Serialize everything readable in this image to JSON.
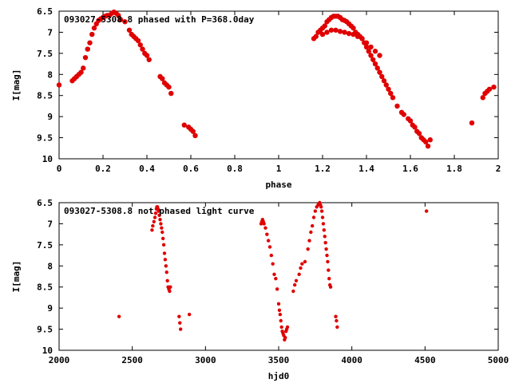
{
  "chart_data": [
    {
      "type": "scatter",
      "title": "093027-5308.8 phased with P=368.0day",
      "xlabel": "phase",
      "ylabel": "I[mag]",
      "xlim": [
        0,
        2
      ],
      "ylim": [
        10,
        6.5
      ],
      "y_inverted": true,
      "xticks": [
        "0",
        "0.2",
        "0.4",
        "0.6",
        "0.8",
        "1",
        "1.2",
        "1.4",
        "1.6",
        "1.8",
        "2"
      ],
      "yticks": [
        "6.5",
        "7",
        "7.5",
        "8",
        "8.5",
        "9",
        "9.5",
        "10"
      ],
      "marker_color": "#e00000",
      "series": [
        {
          "x": [
            0.0,
            0.06,
            0.07,
            0.08,
            0.09,
            0.1,
            0.11,
            0.12,
            0.13,
            0.14,
            0.15,
            0.16,
            0.17,
            0.18,
            0.19,
            0.2,
            0.21,
            0.22,
            0.23,
            0.24,
            0.25,
            0.26,
            0.27,
            0.28,
            0.3,
            0.32,
            0.33,
            0.34,
            0.35,
            0.36,
            0.37,
            0.38,
            0.39,
            0.4,
            0.41,
            0.46,
            0.47,
            0.48,
            0.49,
            0.5,
            0.51,
            0.57,
            0.59,
            0.6,
            0.61,
            0.62,
            1.16,
            1.17,
            1.18,
            1.19,
            1.2,
            1.21,
            1.22,
            1.23,
            1.24,
            1.25,
            1.26,
            1.27,
            1.28,
            1.29,
            1.3,
            1.31,
            1.32,
            1.33,
            1.34,
            1.35,
            1.36,
            1.37,
            1.38,
            1.39,
            1.4,
            1.41,
            1.42,
            1.43,
            1.44,
            1.45,
            1.46,
            1.47,
            1.48,
            1.49,
            1.5,
            1.51,
            1.52,
            1.54,
            1.56,
            1.57,
            1.59,
            1.6,
            1.61,
            1.62,
            1.63,
            1.64,
            1.65,
            1.66,
            1.67,
            1.68,
            1.69,
            1.88,
            1.93,
            1.94,
            1.95,
            1.96,
            1.98
          ],
          "y": [
            8.25,
            8.15,
            8.1,
            8.05,
            8.0,
            7.95,
            7.85,
            7.6,
            7.4,
            7.25,
            7.05,
            6.9,
            6.8,
            6.72,
            6.68,
            6.65,
            6.62,
            6.6,
            6.6,
            6.55,
            6.52,
            6.55,
            6.6,
            6.7,
            6.75,
            6.95,
            7.05,
            7.1,
            7.15,
            7.2,
            7.3,
            7.4,
            7.5,
            7.55,
            7.65,
            8.05,
            8.1,
            8.2,
            8.25,
            8.3,
            8.45,
            9.2,
            9.25,
            9.3,
            9.35,
            9.45,
            7.15,
            7.1,
            7.0,
            6.95,
            6.9,
            6.85,
            6.75,
            6.7,
            6.65,
            6.62,
            6.62,
            6.62,
            6.65,
            6.7,
            6.72,
            6.75,
            6.8,
            6.85,
            6.9,
            7.0,
            7.05,
            7.1,
            7.15,
            7.25,
            7.35,
            7.45,
            7.55,
            7.65,
            7.75,
            7.85,
            7.95,
            8.05,
            8.15,
            8.25,
            8.35,
            8.45,
            8.55,
            8.75,
            8.9,
            8.95,
            9.05,
            9.1,
            9.2,
            9.25,
            9.35,
            9.4,
            9.5,
            9.55,
            9.6,
            9.7,
            9.55,
            9.15,
            8.55,
            8.45,
            8.4,
            8.35,
            8.3
          ]
        },
        {
          "x": [
            1.2,
            1.22,
            1.24,
            1.26,
            1.28,
            1.3,
            1.32,
            1.34,
            1.36,
            1.38,
            1.4,
            1.42,
            1.44,
            1.46
          ],
          "y": [
            7.05,
            7.0,
            6.95,
            6.95,
            6.98,
            7.0,
            7.03,
            7.05,
            7.1,
            7.15,
            7.25,
            7.35,
            7.45,
            7.55
          ]
        }
      ]
    },
    {
      "type": "scatter",
      "title": "093027-5308.8 not phased light curve",
      "xlabel": "hjd0",
      "ylabel": "I[mag]",
      "xlim": [
        2000,
        5000
      ],
      "ylim": [
        10,
        6.5
      ],
      "y_inverted": true,
      "xticks": [
        "2000",
        "2500",
        "3000",
        "3500",
        "4000",
        "4500",
        "5000"
      ],
      "yticks": [
        "6.5",
        "7",
        "7.5",
        "8",
        "8.5",
        "9",
        "9.5",
        "10"
      ],
      "marker_color": "#e00000",
      "series": [
        {
          "x": [
            2410,
            2635,
            2640,
            2648,
            2655,
            2660,
            2665,
            2668,
            2672,
            2676,
            2680,
            2685,
            2690,
            2695,
            2700,
            2705,
            2710,
            2715,
            2720,
            2725,
            2730,
            2735,
            2740,
            2745,
            2750,
            2755,
            2760,
            2820,
            2825,
            2830,
            2890,
            3380,
            3385,
            3390,
            3395,
            3400,
            3410,
            3420,
            3430,
            3440,
            3450,
            3460,
            3470,
            3480,
            3490,
            3500,
            3505,
            3510,
            3515,
            3520,
            3525,
            3530,
            3535,
            3540,
            3545,
            3550,
            3555,
            3560,
            3600,
            3610,
            3620,
            3640,
            3650,
            3660,
            3680,
            3700,
            3710,
            3720,
            3730,
            3740,
            3750,
            3760,
            3770,
            3780,
            3785,
            3790,
            3795,
            3800,
            3805,
            3810,
            3815,
            3820,
            3825,
            3830,
            3835,
            3840,
            3845,
            3850,
            3855,
            3890,
            3895,
            3900,
            4510
          ],
          "y": [
            9.2,
            7.15,
            7.05,
            6.95,
            6.85,
            6.75,
            6.65,
            6.6,
            6.6,
            6.65,
            6.7,
            6.8,
            6.9,
            7.0,
            7.1,
            7.2,
            7.35,
            7.5,
            7.7,
            7.85,
            8.0,
            8.15,
            8.35,
            8.5,
            8.55,
            8.6,
            8.5,
            9.2,
            9.35,
            9.5,
            9.15,
            7.0,
            6.95,
            6.9,
            6.95,
            7.0,
            7.1,
            7.25,
            7.4,
            7.55,
            7.75,
            7.95,
            8.2,
            8.3,
            8.55,
            8.9,
            9.05,
            9.15,
            9.3,
            9.45,
            9.55,
            9.6,
            9.65,
            9.75,
            9.7,
            9.55,
            9.5,
            9.45,
            8.6,
            8.45,
            8.35,
            8.2,
            8.05,
            7.95,
            7.9,
            7.6,
            7.4,
            7.2,
            7.05,
            6.85,
            6.7,
            6.6,
            6.55,
            6.5,
            6.55,
            6.6,
            6.7,
            6.85,
            7.0,
            7.15,
            7.3,
            7.45,
            7.6,
            7.75,
            7.9,
            8.1,
            8.3,
            8.45,
            8.5,
            9.2,
            9.3,
            9.45,
            6.7
          ]
        }
      ]
    }
  ]
}
